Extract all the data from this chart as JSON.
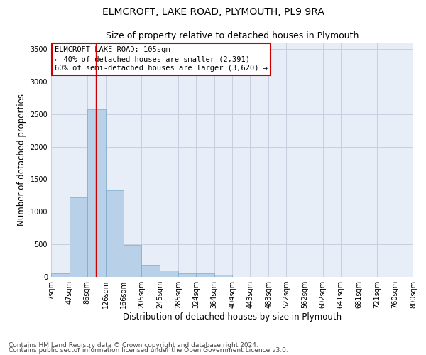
{
  "title": "ELMCROFT, LAKE ROAD, PLYMOUTH, PL9 9RA",
  "subtitle": "Size of property relative to detached houses in Plymouth",
  "xlabel": "Distribution of detached houses by size in Plymouth",
  "ylabel": "Number of detached properties",
  "bar_color": "#b8d0e8",
  "bar_edge_color": "#7aaac8",
  "background_color": "#e8eef8",
  "grid_color": "#c8d0e0",
  "bin_edges": [
    7,
    47,
    86,
    126,
    166,
    205,
    245,
    285,
    324,
    364,
    404,
    443,
    483,
    522,
    562,
    602,
    641,
    681,
    721,
    760,
    800
  ],
  "bar_heights": [
    50,
    1220,
    2580,
    1330,
    490,
    190,
    100,
    50,
    50,
    30,
    0,
    0,
    0,
    0,
    0,
    0,
    0,
    0,
    0,
    0
  ],
  "tick_labels": [
    "7sqm",
    "47sqm",
    "86sqm",
    "126sqm",
    "166sqm",
    "205sqm",
    "245sqm",
    "285sqm",
    "324sqm",
    "364sqm",
    "404sqm",
    "443sqm",
    "483sqm",
    "522sqm",
    "562sqm",
    "602sqm",
    "641sqm",
    "681sqm",
    "721sqm",
    "760sqm",
    "800sqm"
  ],
  "red_line_x": 105,
  "annotation_title": "ELMCROFT LAKE ROAD: 105sqm",
  "annotation_line1": "← 40% of detached houses are smaller (2,391)",
  "annotation_line2": "60% of semi-detached houses are larger (3,620) →",
  "annotation_box_color": "#ffffff",
  "annotation_box_edge": "#cc0000",
  "red_line_color": "#cc0000",
  "ylim": [
    0,
    3600
  ],
  "yticks": [
    0,
    500,
    1000,
    1500,
    2000,
    2500,
    3000,
    3500
  ],
  "footer1": "Contains HM Land Registry data © Crown copyright and database right 2024.",
  "footer2": "Contains public sector information licensed under the Open Government Licence v3.0.",
  "title_fontsize": 10,
  "subtitle_fontsize": 9,
  "axis_label_fontsize": 8.5,
  "tick_fontsize": 7,
  "annotation_fontsize": 7.5,
  "footer_fontsize": 6.5
}
